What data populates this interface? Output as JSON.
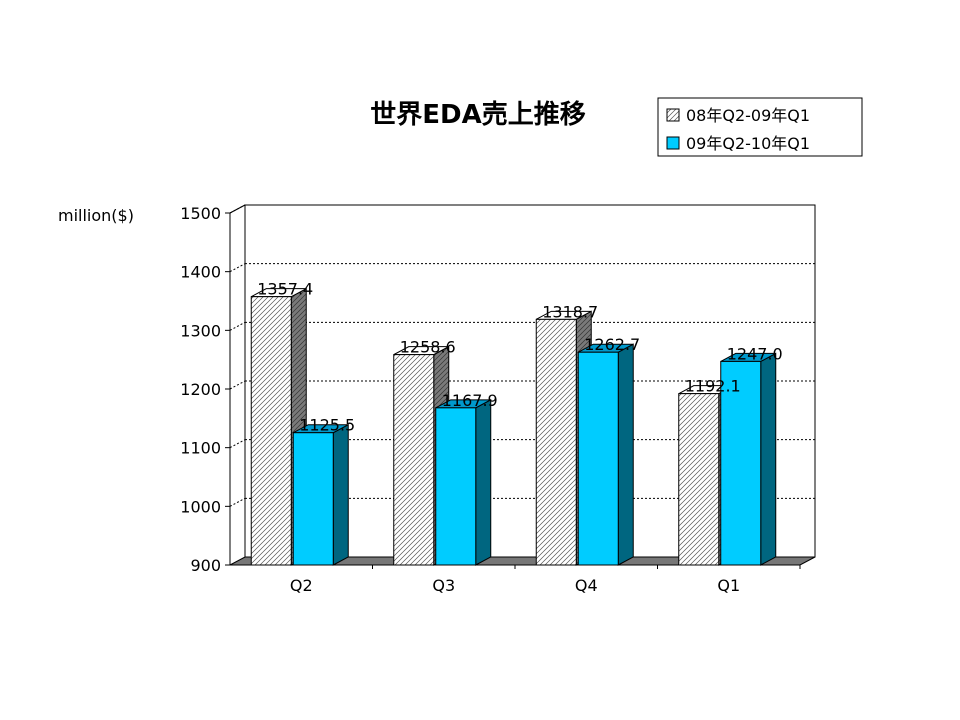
{
  "chart_data": {
    "type": "bar",
    "title": "世界EDA売上推移",
    "ylabel": "million($)",
    "xlabel": "",
    "categories": [
      "Q2",
      "Q3",
      "Q4",
      "Q1"
    ],
    "series": [
      {
        "name": "08年Q2-09年Q1",
        "values": [
          1357.4,
          1258.6,
          1318.7,
          1192.1
        ],
        "value_labels": [
          "1357.4",
          "1258.6",
          "1318.7",
          "1192.1"
        ],
        "color": "#ffffff",
        "pattern": "diagonal-hatch"
      },
      {
        "name": "09年Q2-10年Q1",
        "values": [
          1125.5,
          1167.9,
          1262.7,
          1247.0
        ],
        "value_labels": [
          "1125.5",
          "1167.9",
          "1262.7",
          "1247.0"
        ],
        "color": "#00ccff"
      }
    ],
    "ylim": [
      900,
      1500
    ],
    "yticks": [
      "900",
      "1000",
      "1100",
      "1200",
      "1300",
      "1400",
      "1500"
    ],
    "grid": true,
    "legend_position": "top-right"
  }
}
